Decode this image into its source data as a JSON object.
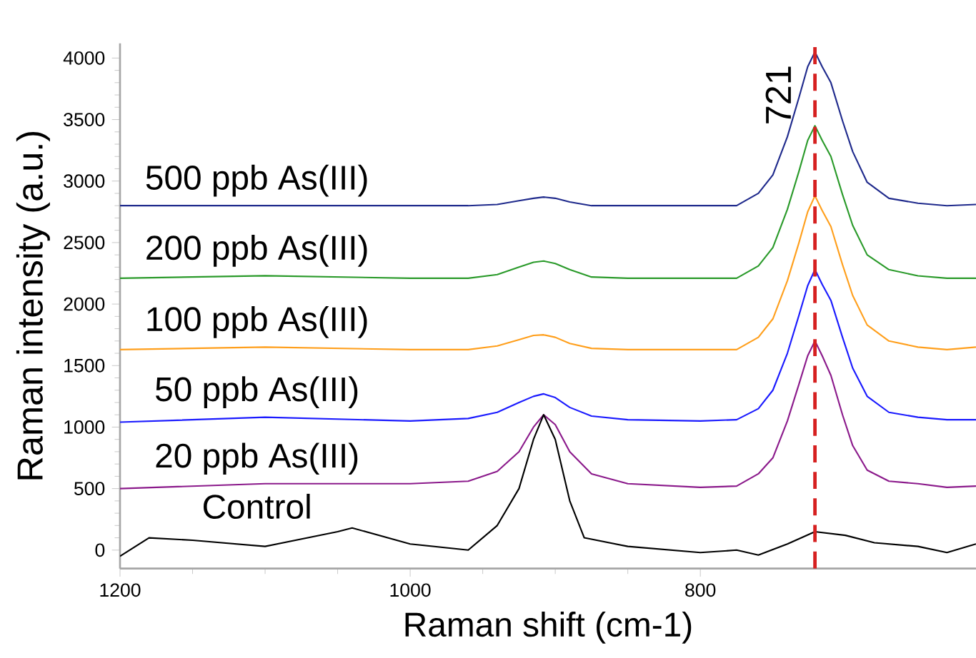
{
  "chart_data": {
    "type": "line",
    "xlabel": "Raman shift (cm-1)",
    "ylabel": "Raman intensity (a.u.)",
    "xlim": [
      1200,
      610
    ],
    "xticks": [
      1200,
      1000,
      800
    ],
    "ylim": [
      -150,
      4120
    ],
    "yticks": [
      0,
      500,
      1000,
      1500,
      2000,
      2500,
      3000,
      3500,
      4000
    ],
    "x": [
      1200,
      1100,
      1000,
      960,
      940,
      925,
      915,
      908,
      900,
      890,
      875,
      850,
      800,
      775,
      760,
      750,
      740,
      732,
      726,
      721,
      716,
      710,
      702,
      695,
      685,
      670,
      650,
      630,
      610
    ],
    "series": [
      {
        "name": "500 ppb As(III)",
        "color": "#1f2a8c",
        "values": [
          2800,
          2800,
          2800,
          2800,
          2810,
          2840,
          2860,
          2870,
          2860,
          2830,
          2800,
          2800,
          2800,
          2800,
          2900,
          3050,
          3360,
          3680,
          3930,
          4050,
          3930,
          3800,
          3490,
          3240,
          2990,
          2860,
          2820,
          2800,
          2810
        ]
      },
      {
        "name": "200 ppb As(III)",
        "color": "#2a9a2a",
        "values": [
          2210,
          2230,
          2210,
          2210,
          2240,
          2300,
          2340,
          2350,
          2330,
          2280,
          2220,
          2210,
          2210,
          2210,
          2310,
          2460,
          2770,
          3080,
          3330,
          3450,
          3330,
          3200,
          2890,
          2640,
          2400,
          2280,
          2230,
          2210,
          2210
        ]
      },
      {
        "name": "100 ppb As(III)",
        "color": "#ff9f1c",
        "values": [
          1630,
          1650,
          1630,
          1630,
          1660,
          1710,
          1745,
          1750,
          1730,
          1680,
          1640,
          1630,
          1630,
          1630,
          1730,
          1880,
          2190,
          2500,
          2750,
          2880,
          2760,
          2630,
          2320,
          2070,
          1830,
          1700,
          1650,
          1630,
          1650
        ]
      },
      {
        "name": "50 ppb As(III)",
        "color": "#1a1aff",
        "values": [
          1040,
          1080,
          1050,
          1070,
          1120,
          1200,
          1250,
          1270,
          1240,
          1160,
          1090,
          1060,
          1050,
          1060,
          1150,
          1300,
          1600,
          1910,
          2150,
          2280,
          2160,
          2030,
          1730,
          1480,
          1250,
          1120,
          1080,
          1060,
          1060
        ]
      },
      {
        "name": "20 ppb As(III)",
        "color": "#8b1a8b",
        "values": [
          500,
          540,
          540,
          560,
          640,
          800,
          1000,
          1100,
          1020,
          800,
          620,
          540,
          510,
          520,
          620,
          750,
          1050,
          1350,
          1580,
          1700,
          1580,
          1420,
          1100,
          850,
          650,
          560,
          540,
          510,
          520
        ]
      },
      {
        "name": "Control",
        "color": "#000000",
        "x": [
          1200,
          1180,
          1150,
          1100,
          1050,
          1040,
          1000,
          960,
          940,
          925,
          915,
          908,
          900,
          890,
          880,
          850,
          800,
          775,
          760,
          740,
          721,
          700,
          680,
          650,
          630,
          610
        ],
        "values": [
          -50,
          100,
          80,
          30,
          150,
          180,
          50,
          0,
          200,
          500,
          900,
          1100,
          900,
          400,
          100,
          30,
          -20,
          0,
          -40,
          50,
          150,
          120,
          60,
          30,
          -20,
          50
        ]
      }
    ],
    "ref_lines": [
      {
        "axis": "x",
        "value": 721,
        "label": "721",
        "color": "#d62020",
        "line_style": "dashed"
      }
    ]
  }
}
